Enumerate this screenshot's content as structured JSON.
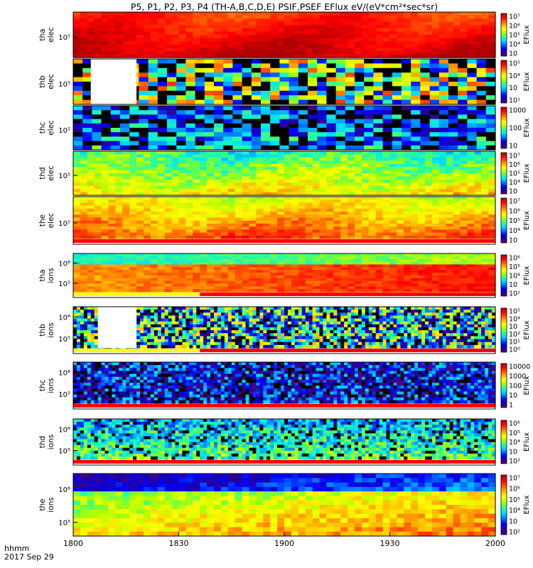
{
  "title": "P5, P1, P2, P3, P4 (TH-A,B,C,D,E) PSIF,PSEF EFlux eV/(eV*cm²*sec*sr)",
  "footer": {
    "time_format": "hhmm",
    "date": "2017 Sep 29"
  },
  "colors": {
    "colormap": [
      "#5a0070",
      "#2000a0",
      "#0000ff",
      "#0080ff",
      "#00e0ff",
      "#30ff90",
      "#b0ff00",
      "#ffff00",
      "#ffb000",
      "#ff5000",
      "#ff0000",
      "#b00000"
    ],
    "gap_bar_red": "#ff0000",
    "gap_bar_yellow": "#ffff00",
    "no_data": "#ffffff"
  },
  "chart_data": {
    "type": "heatmap",
    "x_axis": {
      "range": [
        "1800",
        "2000"
      ],
      "ticks": [
        "1800",
        "1830",
        "1900",
        "1930",
        "2000"
      ],
      "label": "hhmm"
    },
    "panels": [
      {
        "id": "tha-elec",
        "ylabel": [
          "tha",
          "elec"
        ],
        "y_ticks": [
          "10⁵"
        ],
        "cbar_ticks": [
          "10⁷",
          "10⁶",
          "10⁵",
          "10⁴",
          "10⁳"
        ],
        "cbar_label": "EFlux",
        "pattern": "smooth",
        "level": 0.92,
        "gradient": 0.07,
        "noise": 0.03,
        "gap": "none",
        "ybar": "none"
      },
      {
        "id": "thb-elec",
        "ylabel": [
          "thb",
          "elec"
        ],
        "y_ticks": [
          "10⁵"
        ],
        "cbar_ticks": [
          "10⁵",
          "10⁴",
          "10⁳",
          "10¹"
        ],
        "cbar_label": "EFlux",
        "pattern": "checker",
        "level": 0.5,
        "gradient": 0.0,
        "noise": 0.35,
        "gap": "1805-1818",
        "ybar": "none"
      },
      {
        "id": "thc-elec",
        "ylabel": [
          "thc",
          "elec"
        ],
        "y_ticks": [
          "10⁵"
        ],
        "cbar_ticks": [
          "1000",
          "100",
          "10"
        ],
        "cbar_label": "EFlux",
        "pattern": "checker",
        "level": 0.28,
        "gradient": 0.05,
        "noise": 0.2,
        "gap": "none",
        "ybar": "none"
      },
      {
        "id": "thd-elec",
        "ylabel": [
          "thd",
          "elec"
        ],
        "y_ticks": [
          "10⁵"
        ],
        "cbar_ticks": [
          "10⁷",
          "10⁶",
          "10⁵",
          "10⁴",
          "10⁳"
        ],
        "cbar_label": "EFlux",
        "pattern": "smooth",
        "level": 0.55,
        "gradient": 0.12,
        "noise": 0.08,
        "gap": "none",
        "ybar": "none"
      },
      {
        "id": "the-elec",
        "ylabel": [
          "the",
          "elec"
        ],
        "y_ticks": [
          "10⁵"
        ],
        "cbar_ticks": [
          "10⁷",
          "10⁶",
          "10⁵",
          "10⁴",
          "10⁳"
        ],
        "cbar_label": "EFlux",
        "pattern": "smooth",
        "level": 0.72,
        "gradient": 0.12,
        "noise": 0.06,
        "gap": "none",
        "ybar": "red"
      },
      {
        "id": "tha-ions",
        "ylabel": [
          "tha",
          "ions"
        ],
        "y_ticks": [
          "10⁶",
          "10⁵"
        ],
        "cbar_ticks": [
          "10⁶",
          "10⁵",
          "10⁴",
          "10⁳",
          "10²"
        ],
        "cbar_label": "EFlux",
        "pattern": "bands",
        "level": 0.75,
        "gradient": 0.0,
        "noise": 0.05,
        "gap": "none",
        "ybar": "yellow-red"
      },
      {
        "id": "thb-ions",
        "ylabel": [
          "thb",
          "ions"
        ],
        "y_ticks": [
          "10⁶",
          "10⁵"
        ],
        "cbar_ticks": [
          "10⁵",
          "10⁴",
          "10⁳",
          "10²",
          "10¹",
          "10⁰"
        ],
        "cbar_label": "EFlux",
        "pattern": "stripes",
        "level": 0.38,
        "gradient": 0.0,
        "noise": 0.35,
        "gap": "1807-1818",
        "ybar": "yellow-red"
      },
      {
        "id": "thc-ions",
        "ylabel": [
          "thc",
          "ions"
        ],
        "y_ticks": [
          "10⁶",
          "10⁵"
        ],
        "cbar_ticks": [
          "10000",
          "1000",
          "100",
          "10",
          "1"
        ],
        "cbar_label": "EFlux",
        "pattern": "stripes",
        "level": 0.18,
        "gradient": 0.0,
        "noise": 0.2,
        "gap": "none",
        "ybar": "red"
      },
      {
        "id": "thd-ions",
        "ylabel": [
          "thd",
          "ions"
        ],
        "y_ticks": [
          "10⁶",
          "10⁵"
        ],
        "cbar_ticks": [
          "10⁶",
          "10⁵",
          "10⁴",
          "10⁳",
          "10²"
        ],
        "cbar_label": "EFlux",
        "pattern": "stripes",
        "level": 0.4,
        "gradient": 0.08,
        "noise": 0.15,
        "gap": "none",
        "ybar": "red"
      },
      {
        "id": "the-ions",
        "ylabel": [
          "the",
          "ions"
        ],
        "y_ticks": [
          "10⁶",
          "10⁵"
        ],
        "cbar_ticks": [
          "10⁷",
          "10⁶",
          "10⁵",
          "10⁴",
          "10⁳",
          "10²"
        ],
        "cbar_label": "EFlux",
        "pattern": "bands",
        "level": 0.55,
        "gradient": 0.12,
        "noise": 0.08,
        "gap": "none",
        "ybar": "none"
      }
    ]
  }
}
